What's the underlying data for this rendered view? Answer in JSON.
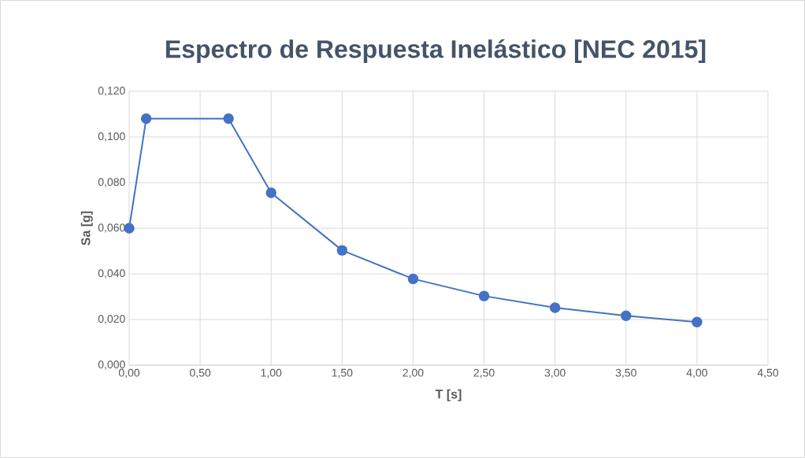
{
  "chart_data": {
    "type": "line",
    "title": "Espectro de Respuesta Inelástico [NEC 2015]",
    "xlabel": "T [s]",
    "ylabel": "Sa [g]",
    "x": [
      0,
      0.12,
      0.7,
      1.0,
      1.5,
      2.0,
      2.5,
      3.0,
      3.5,
      4.0
    ],
    "series": [
      {
        "color": "#4472c4",
        "values": [
          0.06,
          0.108,
          0.108,
          0.0755,
          0.0503,
          0.0378,
          0.0303,
          0.0252,
          0.0216,
          0.0189
        ]
      }
    ],
    "xlim": [
      0,
      4.5
    ],
    "ylim": [
      0,
      0.12
    ],
    "xticks": [
      {
        "value": 0,
        "label": "0,00"
      },
      {
        "value": 0.5,
        "label": "0,50"
      },
      {
        "value": 1,
        "label": "1,00"
      },
      {
        "value": 1.5,
        "label": "1,50"
      },
      {
        "value": 2,
        "label": "2,00"
      },
      {
        "value": 2.5,
        "label": "2,50"
      },
      {
        "value": 3,
        "label": "3,00"
      },
      {
        "value": 3.5,
        "label": "3,50"
      },
      {
        "value": 4,
        "label": "4,00"
      },
      {
        "value": 4.5,
        "label": "4,50"
      }
    ],
    "yticks": [
      {
        "value": 0,
        "label": "0,000"
      },
      {
        "value": 0.02,
        "label": "0,020"
      },
      {
        "value": 0.04,
        "label": "0,040"
      },
      {
        "value": 0.06,
        "label": "0,060"
      },
      {
        "value": 0.08,
        "label": "0,080"
      },
      {
        "value": 0.1,
        "label": "0,100"
      },
      {
        "value": 0.12,
        "label": "0,120"
      }
    ],
    "grid": true,
    "marker": "circle",
    "line_style": "solid"
  }
}
